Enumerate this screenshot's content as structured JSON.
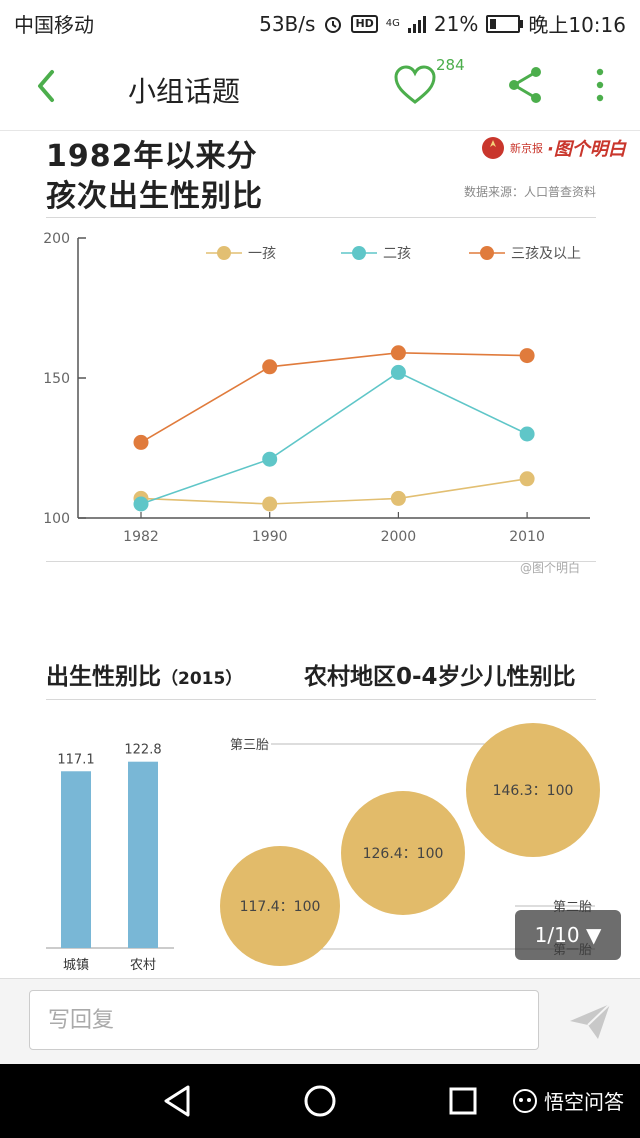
{
  "status": {
    "carrier": "中国移动",
    "speed": "53B/s",
    "network": "4G",
    "hd": "HD",
    "battery": "21%",
    "time": "晚上10:16"
  },
  "appbar": {
    "title": "小组话题",
    "like_count": "284"
  },
  "chart1": {
    "title_line1": "1982年以来分",
    "title_line2": "孩次出生性别比",
    "source": "数据来源：人口普查资料",
    "logo_left": "新京报",
    "logo_right": "·图个明白",
    "watermark": "@图个明白"
  },
  "chart2": {
    "title_left": "出生性别比",
    "title_left_year": "（2015）",
    "title_right": "农村地区0-4岁少儿性别比"
  },
  "chart_data": [
    {
      "type": "line",
      "x": [
        "1982",
        "1990",
        "2000",
        "2010"
      ],
      "ylim": [
        100,
        200
      ],
      "yticks": [
        "100",
        "150",
        "200"
      ],
      "series": [
        {
          "name": "一孩",
          "color": "#e2bf72",
          "values": [
            107,
            105,
            107,
            114
          ]
        },
        {
          "name": "二孩",
          "color": "#5fc6c8",
          "values": [
            105,
            121,
            152,
            130
          ]
        },
        {
          "name": "三孩及以上",
          "color": "#e07b3c",
          "values": [
            127,
            154,
            159,
            158
          ]
        }
      ]
    },
    {
      "type": "bar",
      "categories": [
        "城镇",
        "农村"
      ],
      "values": [
        117.1,
        122.8
      ],
      "labels": [
        "117.1",
        "122.8"
      ],
      "color": "#79b7d6"
    },
    {
      "type": "scatter",
      "color": "#e2bb6a",
      "points": [
        {
          "label": "117.4：100",
          "value": 117.4,
          "level": "第一胎"
        },
        {
          "label": "126.4：100",
          "value": 126.4,
          "level": "第二胎"
        },
        {
          "label": "146.3：100",
          "value": 146.3,
          "level": "第三胎"
        }
      ],
      "level_labels": [
        "第三胎",
        "第二胎",
        "第一胎"
      ]
    }
  ],
  "page_indicator": "1/10 ▼",
  "reply": {
    "placeholder": "写回复"
  },
  "brand": "悟空问答",
  "colors": {
    "accent": "#4cae4c"
  }
}
